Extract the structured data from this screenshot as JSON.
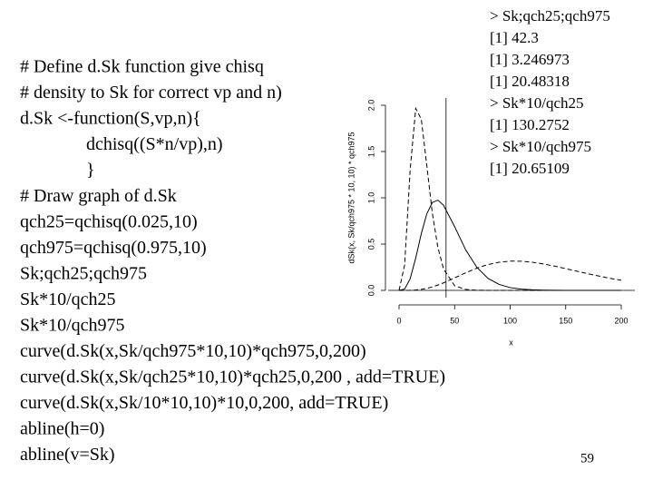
{
  "code": [
    "# Define d.Sk function give chisq",
    "# density to Sk for correct vp and n)",
    "d.Sk <-function(S,vp,n){",
    "dchisq((S*n/vp),n)",
    "}",
    "# Draw graph of d.Sk",
    "qch25=qchisq(0.025,10)",
    "qch975=qchisq(0.975,10)",
    "Sk;qch25;qch975",
    "Sk*10/qch25",
    "Sk*10/qch975",
    "curve(d.Sk(x,Sk/qch975*10,10)*qch975,0,200)",
    "curve(d.Sk(x,Sk/qch25*10,10)*qch25,0,200 , add=TRUE)",
    "curve(d.Sk(x,Sk/10*10,10)*10,0,200, add=TRUE)",
    "abline(h=0)",
    "abline(v=Sk)"
  ],
  "output": [
    "> Sk;qch25;qch975",
    "[1] 42.3",
    "[1] 3.246973",
    "[1] 20.48318",
    "> Sk*10/qch25",
    "[1] 130.2752",
    "> Sk*10/qch975",
    "[1] 20.65109"
  ],
  "page_number": "59",
  "chart_data": {
    "type": "line",
    "x_label": "x",
    "y_label": "dSk(x, Sk/qch975 * 10, 10) * qch975",
    "x": [
      0,
      5,
      10,
      15,
      20,
      25,
      30,
      35,
      40,
      50,
      60,
      70,
      80,
      90,
      100,
      110,
      120,
      130,
      140,
      150,
      160,
      170,
      180,
      190,
      200
    ],
    "series": [
      {
        "color": "#000000",
        "line_style": "dashed",
        "values": [
          0,
          0.273,
          1.303,
          1.966,
          1.85,
          1.346,
          0.831,
          0.46,
          0.233,
          0.0506,
          0.0093,
          0.0015,
          0.0002,
          0,
          0,
          0,
          0,
          0,
          0,
          0,
          0,
          0,
          0,
          0,
          0
        ]
      },
      {
        "color": "#000000",
        "line_style": "solid",
        "values": [
          0,
          0.0141,
          0.125,
          0.35,
          0.612,
          0.828,
          0.95,
          0.975,
          0.92,
          0.689,
          0.437,
          0.249,
          0.13,
          0.064,
          0.03,
          0.0134,
          0.0057,
          0.0024,
          0.001,
          0.0004,
          0,
          0,
          0,
          0,
          0
        ]
      },
      {
        "color": "#000000",
        "line_style": "dashed",
        "values": [
          0,
          0.0001,
          0.001,
          0.0042,
          0.0109,
          0.0219,
          0.0376,
          0.0575,
          0.0809,
          0.1346,
          0.19,
          0.24,
          0.279,
          0.304,
          0.316,
          0.315,
          0.304,
          0.285,
          0.262,
          0.235,
          0.207,
          0.18,
          0.154,
          0.13,
          0.109
        ]
      }
    ],
    "hline": 0,
    "vline": 42.3,
    "xlim": [
      0,
      200
    ],
    "ylim": [
      0,
      2
    ],
    "xticks": [
      0,
      50,
      100,
      150,
      200
    ],
    "yticks": [
      {
        "value": 0,
        "label": "0.0"
      },
      {
        "value": 0.5,
        "label": "0.5"
      },
      {
        "value": 1,
        "label": "1.0"
      },
      {
        "value": 1.5,
        "label": "1.5"
      },
      {
        "value": 2,
        "label": "2.0"
      }
    ]
  }
}
